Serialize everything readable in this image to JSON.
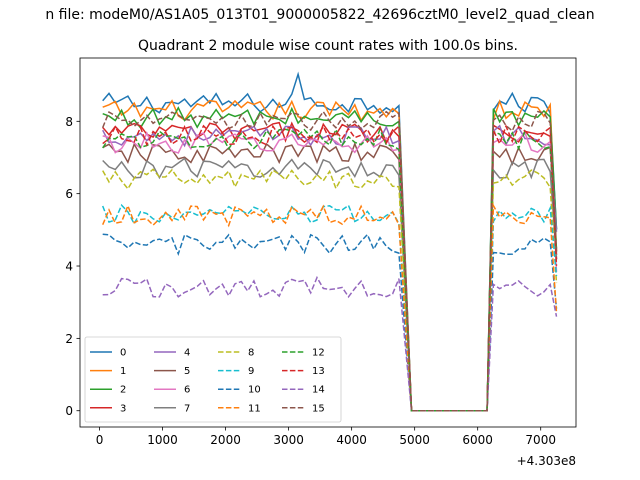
{
  "figure": {
    "suptitle": "n file: modeM0/AS1A05_013T01_9000005822_42696cztM0_level2_quad_clean"
  },
  "chart_data": {
    "type": "line",
    "title": "Quadrant 2 module wise count rates with 100.0s bins.",
    "xlabel": "",
    "ylabel": "",
    "x_offset_label": "+4.303e8",
    "xlim": [
      -310,
      7560
    ],
    "ylim": [
      -0.45,
      9.75
    ],
    "x_ticks": [
      0,
      1000,
      2000,
      3000,
      4000,
      5000,
      6000,
      7000
    ],
    "x_tick_labels": [
      "0",
      "1000",
      "2000",
      "3000",
      "4000",
      "5000",
      "6000",
      "7000"
    ],
    "y_ticks": [
      0,
      2,
      4,
      6,
      8
    ],
    "y_tick_labels": [
      "0",
      "2",
      "4",
      "6",
      "8"
    ],
    "grid": false,
    "legend_placement": "lower-left",
    "legend_columns": 4,
    "segments": [
      {
        "x_start": 50,
        "x_end": 4750
      },
      {
        "x_start": 4950,
        "x_end": 6150
      },
      {
        "x_start": 6250,
        "x_end": 7250
      }
    ],
    "series": [
      {
        "name": "0",
        "color": "#1f77b4",
        "style": "solid",
        "level": 8.5,
        "dark_level": 0
      },
      {
        "name": "1",
        "color": "#ff7f0e",
        "style": "solid",
        "level": 8.3,
        "dark_level": 0
      },
      {
        "name": "2",
        "color": "#2ca02c",
        "style": "solid",
        "level": 8.1,
        "dark_level": 0
      },
      {
        "name": "3",
        "color": "#d62728",
        "style": "solid",
        "level": 7.7,
        "dark_level": 0
      },
      {
        "name": "4",
        "color": "#9467bd",
        "style": "solid",
        "level": 7.6,
        "dark_level": 0
      },
      {
        "name": "5",
        "color": "#8c564b",
        "style": "solid",
        "level": 7.1,
        "dark_level": 0
      },
      {
        "name": "6",
        "color": "#e377c2",
        "style": "solid",
        "level": 7.4,
        "dark_level": 0
      },
      {
        "name": "7",
        "color": "#7f7f7f",
        "style": "solid",
        "level": 6.7,
        "dark_level": 0
      },
      {
        "name": "8",
        "color": "#bcbd22",
        "style": "dashed",
        "level": 6.4,
        "dark_level": 0
      },
      {
        "name": "9",
        "color": "#17becf",
        "style": "dashed",
        "level": 5.4,
        "dark_level": 0
      },
      {
        "name": "10",
        "color": "#1f77b4",
        "style": "dashed",
        "level": 4.6,
        "dark_level": 0
      },
      {
        "name": "11",
        "color": "#ff7f0e",
        "style": "dashed",
        "level": 5.4,
        "dark_level": 0
      },
      {
        "name": "12",
        "color": "#2ca02c",
        "style": "dashed",
        "level": 7.5,
        "dark_level": 0
      },
      {
        "name": "13",
        "color": "#d62728",
        "style": "dashed",
        "level": 7.6,
        "dark_level": 0
      },
      {
        "name": "14",
        "color": "#9467bd",
        "style": "dashed",
        "level": 3.4,
        "dark_level": 0
      },
      {
        "name": "15",
        "color": "#8c564b",
        "style": "dashed",
        "level": 8.0,
        "dark_level": 0
      }
    ]
  }
}
